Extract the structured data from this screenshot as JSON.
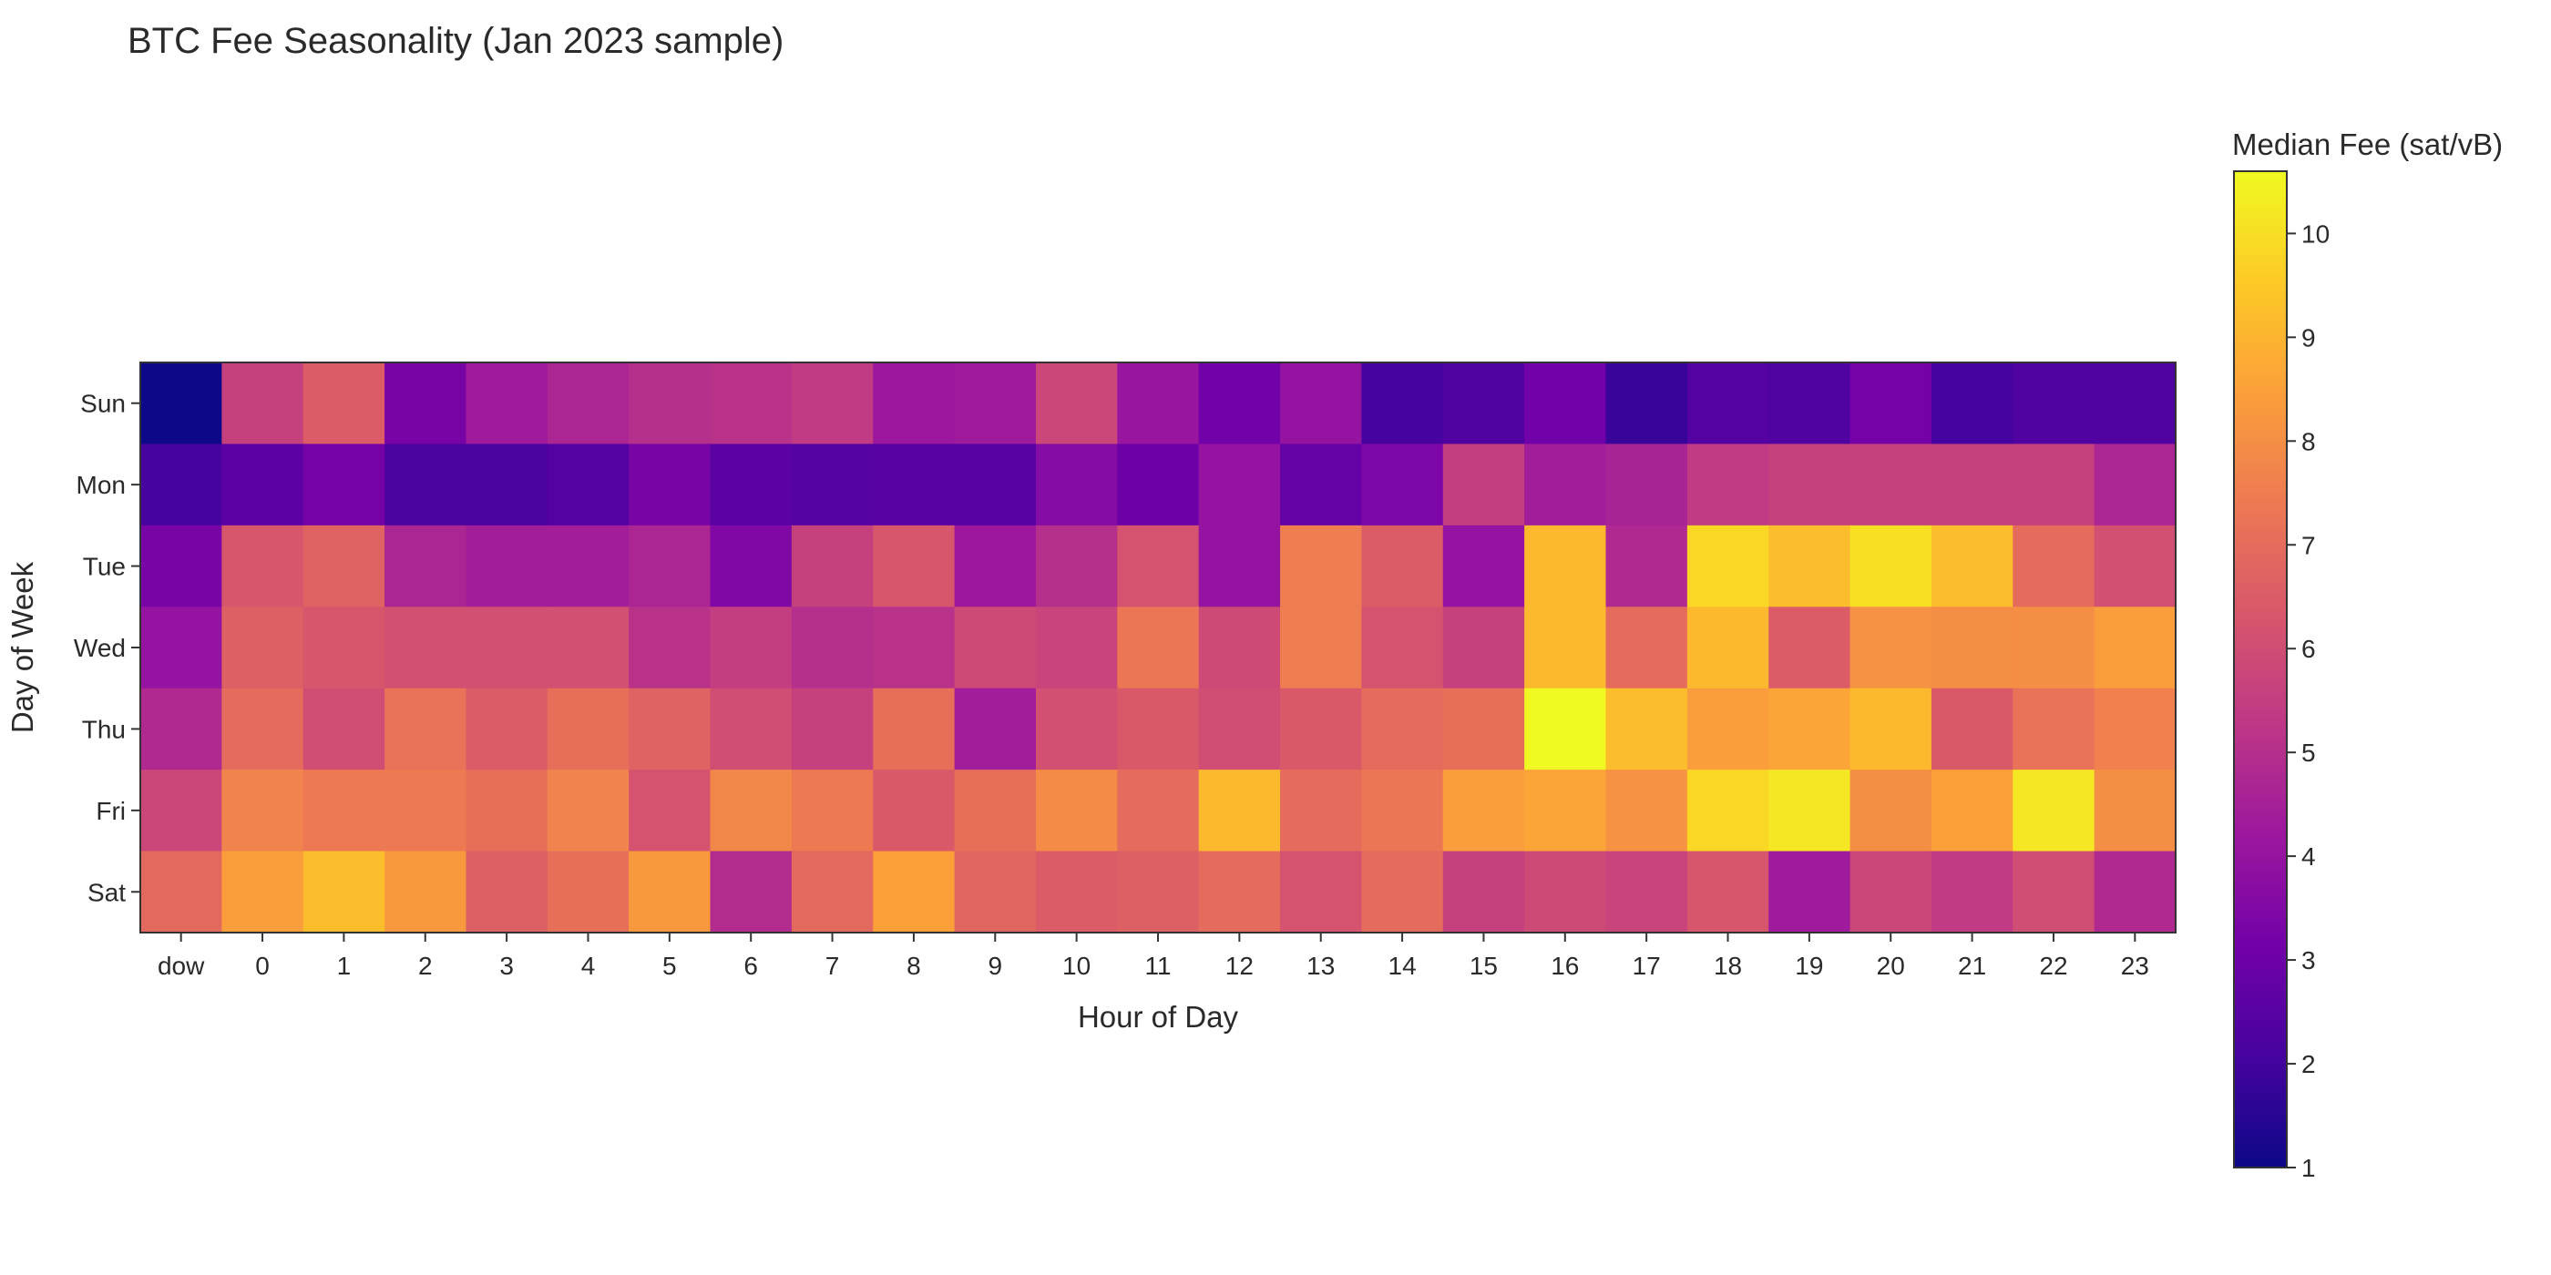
{
  "chart_data": {
    "type": "heatmap",
    "title": "BTC Fee Seasonality (Jan 2023 sample)",
    "xlabel": "Hour of Day",
    "ylabel": "Day of Week",
    "x_categories": [
      "dow",
      "0",
      "1",
      "2",
      "3",
      "4",
      "5",
      "6",
      "7",
      "8",
      "9",
      "10",
      "11",
      "12",
      "13",
      "14",
      "15",
      "16",
      "17",
      "18",
      "19",
      "20",
      "21",
      "22",
      "23"
    ],
    "y_categories": [
      "Sun",
      "Mon",
      "Tue",
      "Wed",
      "Thu",
      "Fri",
      "Sat"
    ],
    "values": [
      [
        1.0,
        5.6,
        6.5,
        3.3,
        4.3,
        4.7,
        5.0,
        5.1,
        5.4,
        4.2,
        4.3,
        5.8,
        4.1,
        3.1,
        4.0,
        2.1,
        2.3,
        3.1,
        1.8,
        2.4,
        2.3,
        3.2,
        2.1,
        2.3,
        2.3
      ],
      [
        2.1,
        2.6,
        3.2,
        2.2,
        2.2,
        2.4,
        3.3,
        2.6,
        2.4,
        2.5,
        2.5,
        3.6,
        3.0,
        4.0,
        2.8,
        3.4,
        5.5,
        4.4,
        4.6,
        5.4,
        5.6,
        5.6,
        5.6,
        5.6,
        4.7
      ],
      [
        3.3,
        6.3,
        6.7,
        4.7,
        4.4,
        4.4,
        4.7,
        3.5,
        5.6,
        6.3,
        4.2,
        5.0,
        6.2,
        4.0,
        7.5,
        6.5,
        4.0,
        9.1,
        4.8,
        9.8,
        9.2,
        10.0,
        9.2,
        7.0,
        6.1
      ],
      [
        4.0,
        6.6,
        6.3,
        6.1,
        6.1,
        6.1,
        5.1,
        5.5,
        5.0,
        5.1,
        5.9,
        5.7,
        7.3,
        5.9,
        7.5,
        6.2,
        5.6,
        9.1,
        7.0,
        9.1,
        6.5,
        8.1,
        8.0,
        8.0,
        8.4
      ],
      [
        4.8,
        7.0,
        6.0,
        7.2,
        6.5,
        7.1,
        6.7,
        6.0,
        5.6,
        7.1,
        4.4,
        6.1,
        6.4,
        6.0,
        6.4,
        7.0,
        7.1,
        10.6,
        9.2,
        8.4,
        8.6,
        9.1,
        6.4,
        7.2,
        7.6
      ],
      [
        5.8,
        7.7,
        7.4,
        7.4,
        7.1,
        7.7,
        6.2,
        7.8,
        7.4,
        6.4,
        7.1,
        7.9,
        7.0,
        9.1,
        7.0,
        7.3,
        8.4,
        8.6,
        8.1,
        9.8,
        10.2,
        8.0,
        8.5,
        10.2,
        8.0
      ],
      [
        6.9,
        8.4,
        9.2,
        8.3,
        6.6,
        7.1,
        8.3,
        4.9,
        6.9,
        8.5,
        6.8,
        6.5,
        6.6,
        7.0,
        6.2,
        7.0,
        5.6,
        5.9,
        5.7,
        6.3,
        4.3,
        5.8,
        5.4,
        6.0,
        4.8
      ]
    ],
    "colorbar": {
      "title": "Median Fee (sat/vB)",
      "min": 1,
      "max": 10.6,
      "ticks": [
        1,
        2,
        3,
        4,
        5,
        6,
        7,
        8,
        9,
        10
      ]
    },
    "colormap": "plasma",
    "colormap_stops": [
      "#0d0887",
      "#46039f",
      "#7201a8",
      "#9c179e",
      "#bd3786",
      "#d8576b",
      "#ed7953",
      "#fb9f3a",
      "#fdca26",
      "#f0f921"
    ]
  }
}
